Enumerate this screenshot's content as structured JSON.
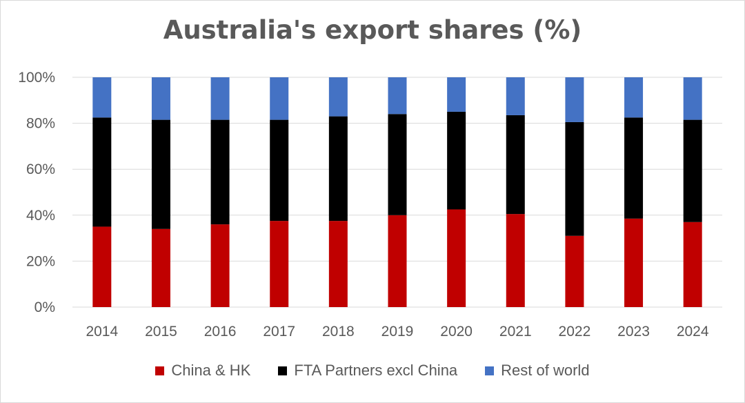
{
  "chart_data": {
    "type": "bar",
    "stacked": true,
    "title": "Australia's export shares (%)",
    "categories": [
      "2014",
      "2015",
      "2016",
      "2017",
      "2018",
      "2019",
      "2020",
      "2021",
      "2022",
      "2023",
      "2024"
    ],
    "series": [
      {
        "name": "China & HK",
        "color": "#c00000",
        "values": [
          35,
          34,
          36,
          37.5,
          37.5,
          40,
          42.5,
          40.5,
          31,
          38.5,
          37
        ]
      },
      {
        "name": "FTA Partners excl China",
        "color": "#000000",
        "values": [
          47.5,
          47.5,
          45.5,
          44,
          45.5,
          44,
          42.5,
          43,
          49.5,
          44,
          44.5
        ]
      },
      {
        "name": "Rest of world",
        "color": "#4472c4",
        "values": [
          17.5,
          18.5,
          18.5,
          18.5,
          17,
          16,
          15,
          16.5,
          19.5,
          17.5,
          18.5
        ]
      }
    ],
    "yticks": [
      "0%",
      "20%",
      "40%",
      "60%",
      "80%",
      "100%"
    ],
    "ylim": [
      0,
      100
    ],
    "grid": true,
    "legend_position": "bottom"
  }
}
